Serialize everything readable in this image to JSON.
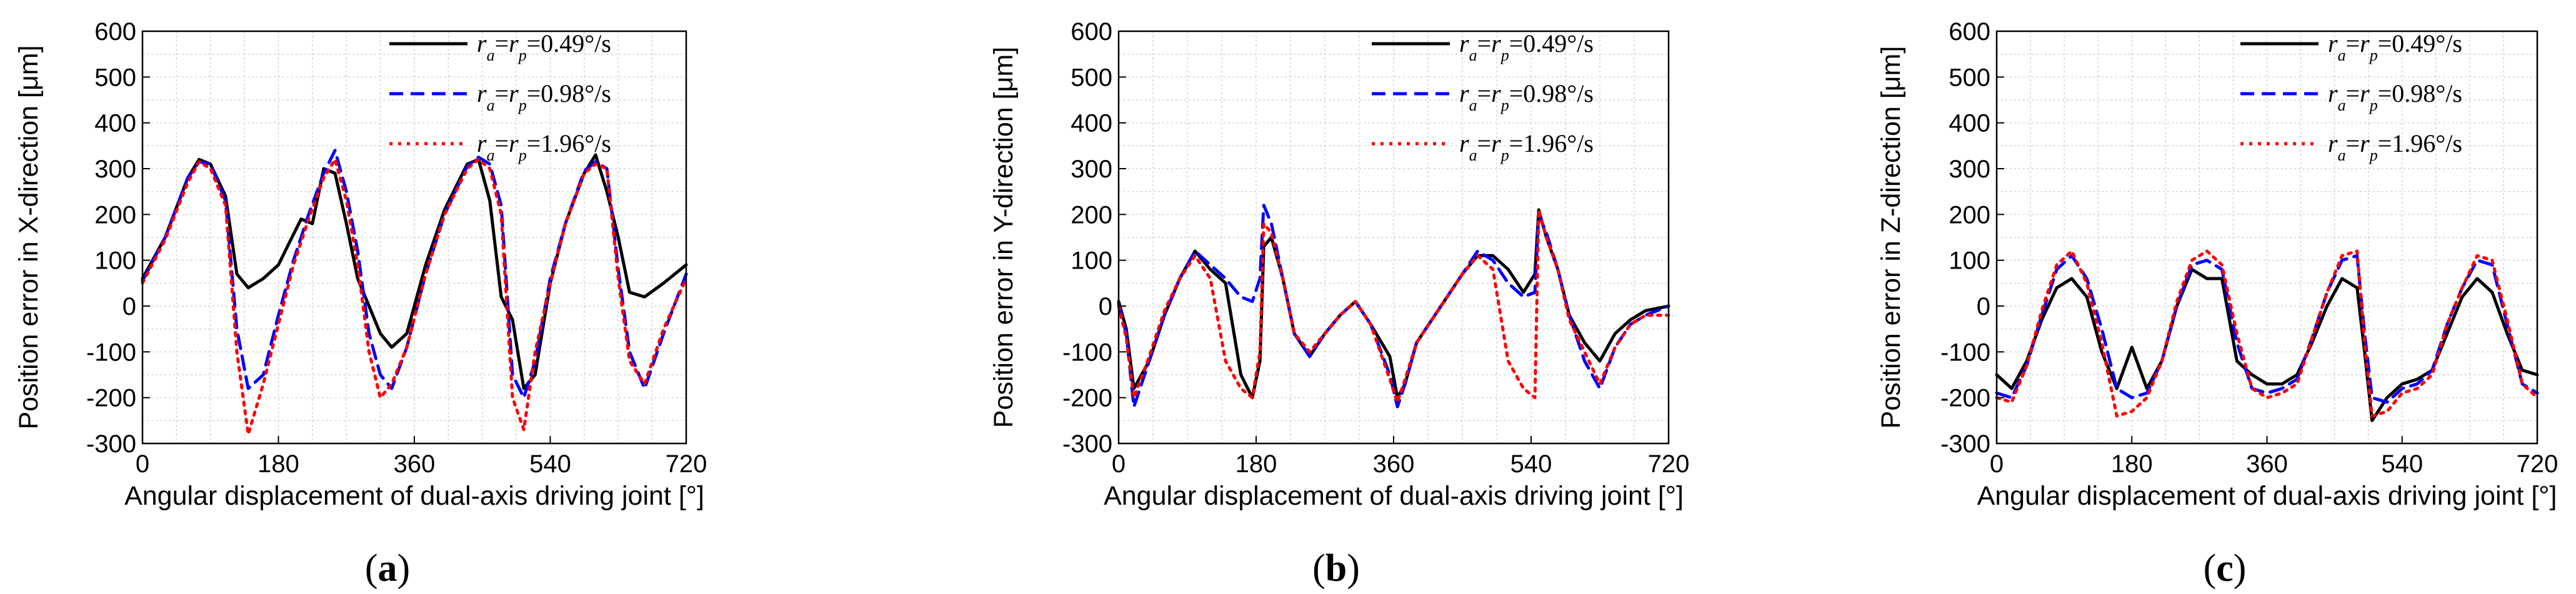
{
  "chart_data": [
    {
      "type": "line",
      "panel_label": "a",
      "title": "",
      "xlabel": "Angular displacement of dual-axis driving joint [°]",
      "ylabel": "Position error in X-direction [μm]",
      "xlim": [
        0,
        720
      ],
      "ylim": [
        -300,
        600
      ],
      "xticks": [
        "0",
        "180",
        "360",
        "540",
        "720"
      ],
      "yticks": [
        "-300",
        "-200",
        "-100",
        "0",
        "100",
        "200",
        "300",
        "400",
        "500",
        "600"
      ],
      "grid": true,
      "legend_position": "top-right",
      "series": [
        {
          "name": "ra=rp=0.49°/s",
          "style": "solid",
          "color": "#000000",
          "x": [
            0,
            30,
            60,
            75,
            90,
            110,
            125,
            140,
            160,
            180,
            195,
            210,
            225,
            240,
            255,
            270,
            285,
            300,
            315,
            330,
            350,
            375,
            400,
            430,
            445,
            460,
            475,
            490,
            505,
            520,
            540,
            560,
            585,
            600,
            615,
            630,
            645,
            665,
            690,
            720
          ],
          "y": [
            60,
            150,
            280,
            320,
            310,
            240,
            70,
            40,
            60,
            90,
            140,
            190,
            180,
            300,
            290,
            180,
            60,
            0,
            -60,
            -90,
            -60,
            90,
            210,
            310,
            320,
            230,
            20,
            -30,
            -180,
            -150,
            50,
            180,
            290,
            330,
            250,
            150,
            30,
            20,
            50,
            90
          ]
        },
        {
          "name": "ra=rp=0.98°/s",
          "style": "dashed",
          "color": "#0000ff",
          "x": [
            0,
            30,
            60,
            75,
            90,
            110,
            125,
            140,
            160,
            180,
            200,
            220,
            240,
            255,
            270,
            285,
            300,
            315,
            330,
            350,
            375,
            400,
            430,
            445,
            460,
            475,
            490,
            505,
            520,
            540,
            560,
            585,
            600,
            615,
            630,
            645,
            665,
            690,
            720
          ],
          "y": [
            55,
            150,
            280,
            315,
            310,
            230,
            -50,
            -180,
            -150,
            -20,
            100,
            200,
            290,
            340,
            250,
            120,
            -60,
            -150,
            -180,
            -90,
            70,
            200,
            305,
            325,
            310,
            220,
            -150,
            -200,
            -120,
            60,
            180,
            295,
            315,
            300,
            80,
            -100,
            -180,
            -60,
            70
          ]
        },
        {
          "name": "ra=rp=1.96°/s",
          "style": "dotted",
          "color": "#ff0000",
          "x": [
            0,
            30,
            60,
            75,
            90,
            110,
            125,
            140,
            160,
            180,
            200,
            220,
            240,
            255,
            270,
            285,
            300,
            315,
            330,
            350,
            375,
            400,
            430,
            445,
            460,
            475,
            490,
            505,
            520,
            540,
            560,
            585,
            600,
            615,
            630,
            645,
            665,
            690,
            720
          ],
          "y": [
            50,
            145,
            270,
            315,
            300,
            220,
            -100,
            -280,
            -170,
            -40,
            90,
            190,
            280,
            320,
            230,
            90,
            -100,
            -200,
            -170,
            -90,
            70,
            200,
            300,
            320,
            300,
            200,
            -200,
            -270,
            -100,
            50,
            180,
            290,
            310,
            300,
            60,
            -120,
            -170,
            -50,
            60
          ]
        }
      ]
    },
    {
      "type": "line",
      "panel_label": "b",
      "title": "",
      "xlabel": "Angular displacement of dual-axis driving joint [°]",
      "ylabel": "Position error in Y-direction [μm]",
      "xlim": [
        0,
        720
      ],
      "ylim": [
        -300,
        600
      ],
      "xticks": [
        "0",
        "180",
        "360",
        "540",
        "720"
      ],
      "yticks": [
        "-300",
        "-200",
        "-100",
        "0",
        "100",
        "200",
        "300",
        "400",
        "500",
        "600"
      ],
      "grid": true,
      "legend_position": "top-right",
      "series": [
        {
          "name": "ra=rp=0.49°/s",
          "style": "solid",
          "color": "#000000",
          "x": [
            0,
            10,
            20,
            40,
            60,
            80,
            100,
            120,
            140,
            160,
            175,
            185,
            190,
            200,
            215,
            230,
            250,
            270,
            290,
            310,
            330,
            355,
            365,
            375,
            390,
            410,
            430,
            450,
            470,
            490,
            510,
            530,
            545,
            550,
            560,
            575,
            590,
            610,
            630,
            650,
            670,
            690,
            720
          ],
          "y": [
            10,
            -50,
            -180,
            -120,
            -20,
            60,
            120,
            80,
            50,
            -150,
            -200,
            -120,
            130,
            150,
            60,
            -60,
            -110,
            -60,
            -20,
            10,
            -40,
            -110,
            -200,
            -170,
            -80,
            -30,
            20,
            70,
            110,
            110,
            80,
            30,
            70,
            210,
            150,
            80,
            -20,
            -80,
            -120,
            -60,
            -30,
            -10,
            0
          ]
        },
        {
          "name": "ra=rp=0.98°/s",
          "style": "dashed",
          "color": "#0000ff",
          "x": [
            0,
            10,
            20,
            40,
            60,
            80,
            100,
            120,
            140,
            160,
            175,
            185,
            190,
            200,
            215,
            230,
            250,
            270,
            290,
            310,
            330,
            355,
            365,
            375,
            390,
            410,
            430,
            450,
            470,
            490,
            510,
            530,
            545,
            550,
            560,
            575,
            590,
            610,
            630,
            650,
            670,
            690,
            720
          ],
          "y": [
            5,
            -60,
            -220,
            -120,
            -20,
            60,
            120,
            90,
            60,
            20,
            10,
            60,
            220,
            180,
            60,
            -60,
            -110,
            -60,
            -20,
            10,
            -40,
            -150,
            -220,
            -170,
            -80,
            -30,
            20,
            70,
            120,
            100,
            50,
            20,
            30,
            200,
            160,
            80,
            -20,
            -120,
            -180,
            -90,
            -40,
            -20,
            0
          ]
        },
        {
          "name": "ra=rp=1.96°/s",
          "style": "dotted",
          "color": "#ff0000",
          "x": [
            0,
            10,
            20,
            40,
            60,
            80,
            100,
            120,
            140,
            160,
            175,
            185,
            190,
            200,
            215,
            230,
            250,
            270,
            290,
            310,
            330,
            355,
            365,
            375,
            390,
            410,
            430,
            450,
            470,
            490,
            510,
            530,
            545,
            550,
            560,
            575,
            590,
            610,
            630,
            650,
            670,
            690,
            720
          ],
          "y": [
            0,
            -70,
            -200,
            -110,
            -10,
            60,
            110,
            60,
            -120,
            -180,
            -200,
            -100,
            180,
            160,
            60,
            -60,
            -100,
            -60,
            -20,
            10,
            -40,
            -160,
            -210,
            -160,
            -80,
            -30,
            20,
            70,
            110,
            80,
            -120,
            -180,
            -200,
            210,
            150,
            80,
            -30,
            -100,
            -170,
            -90,
            -40,
            -20,
            -20
          ]
        }
      ]
    },
    {
      "type": "line",
      "panel_label": "c",
      "title": "",
      "xlabel": "Angular displacement of dual-axis driving joint [°]",
      "ylabel": "Position error in Z-direction [μm]",
      "xlim": [
        0,
        720
      ],
      "ylim": [
        -300,
        600
      ],
      "xticks": [
        "0",
        "180",
        "360",
        "540",
        "720"
      ],
      "yticks": [
        "-300",
        "-200",
        "-100",
        "0",
        "100",
        "200",
        "300",
        "400",
        "500",
        "600"
      ],
      "grid": true,
      "legend_position": "top-right",
      "series": [
        {
          "name": "ra=rp=0.49°/s",
          "style": "solid",
          "color": "#000000",
          "x": [
            0,
            20,
            40,
            60,
            80,
            100,
            120,
            140,
            160,
            180,
            200,
            220,
            240,
            260,
            280,
            300,
            320,
            340,
            360,
            380,
            400,
            420,
            440,
            460,
            480,
            490,
            500,
            520,
            540,
            560,
            580,
            600,
            620,
            640,
            660,
            680,
            700,
            720
          ],
          "y": [
            -150,
            -180,
            -120,
            -30,
            40,
            60,
            20,
            -100,
            -180,
            -90,
            -180,
            -120,
            0,
            80,
            60,
            60,
            -120,
            -150,
            -170,
            -170,
            -150,
            -80,
            0,
            60,
            40,
            -100,
            -250,
            -200,
            -170,
            -160,
            -140,
            -60,
            20,
            60,
            30,
            -60,
            -140,
            -150
          ]
        },
        {
          "name": "ra=rp=0.98°/s",
          "style": "dashed",
          "color": "#0000ff",
          "x": [
            0,
            20,
            40,
            60,
            80,
            100,
            120,
            140,
            160,
            180,
            200,
            220,
            240,
            260,
            280,
            300,
            320,
            340,
            360,
            380,
            400,
            420,
            440,
            460,
            480,
            490,
            500,
            520,
            540,
            560,
            580,
            600,
            620,
            640,
            660,
            680,
            700,
            720
          ],
          "y": [
            -190,
            -200,
            -130,
            -20,
            80,
            110,
            60,
            -50,
            -180,
            -200,
            -190,
            -120,
            0,
            90,
            100,
            80,
            -80,
            -180,
            -190,
            -180,
            -160,
            -70,
            30,
            100,
            110,
            -60,
            -200,
            -210,
            -180,
            -170,
            -140,
            -40,
            40,
            100,
            90,
            -40,
            -170,
            -190
          ]
        },
        {
          "name": "ra=rp=1.96°/s",
          "style": "dotted",
          "color": "#ff0000",
          "x": [
            0,
            20,
            40,
            60,
            80,
            100,
            120,
            140,
            160,
            180,
            200,
            220,
            240,
            260,
            280,
            300,
            320,
            340,
            360,
            380,
            400,
            420,
            440,
            460,
            480,
            490,
            500,
            520,
            540,
            560,
            580,
            600,
            620,
            640,
            660,
            680,
            700,
            720
          ],
          "y": [
            -200,
            -210,
            -130,
            -10,
            90,
            120,
            50,
            -80,
            -240,
            -230,
            -200,
            -120,
            10,
            100,
            120,
            90,
            -60,
            -180,
            -200,
            -190,
            -170,
            -70,
            30,
            110,
            120,
            -80,
            -240,
            -230,
            -190,
            -180,
            -150,
            -40,
            40,
            110,
            100,
            -30,
            -170,
            -200
          ]
        }
      ]
    }
  ]
}
